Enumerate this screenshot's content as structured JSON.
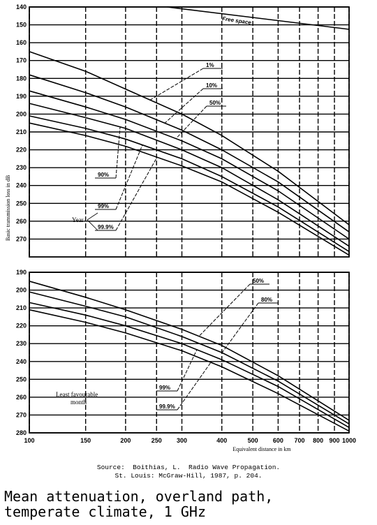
{
  "chart_data": [
    {
      "type": "line",
      "panel": "upper",
      "y_ticks": [
        140,
        150,
        160,
        170,
        180,
        190,
        200,
        210,
        220,
        230,
        240,
        250,
        260,
        270
      ],
      "ylim": [
        140,
        280
      ],
      "ylabel": "Basic transmission loss in dB",
      "xlim": [
        100,
        1000
      ],
      "x_scale": "log",
      "grid": true,
      "series": [
        {
          "name": "Free space",
          "x": [
            270,
            1000
          ],
          "y": [
            140,
            152.5
          ]
        },
        {
          "name": "1%",
          "x": [
            100,
            150,
            200,
            300,
            400,
            600,
            1000
          ],
          "y": [
            165,
            176,
            186,
            200,
            212,
            232,
            262
          ]
        },
        {
          "name": "10%",
          "x": [
            100,
            150,
            200,
            300,
            400,
            600,
            1000
          ],
          "y": [
            178,
            188,
            196,
            209,
            220,
            238,
            266
          ]
        },
        {
          "name": "50%",
          "x": [
            100,
            150,
            200,
            300,
            400,
            600,
            1000
          ],
          "y": [
            187,
            196,
            203,
            215,
            225,
            243,
            270
          ]
        },
        {
          "name": "90%",
          "x": [
            100,
            150,
            200,
            300,
            400,
            600,
            1000
          ],
          "y": [
            194,
            202,
            208,
            220,
            230,
            248,
            274
          ]
        },
        {
          "name": "99%",
          "x": [
            100,
            150,
            200,
            300,
            400,
            600,
            1000
          ],
          "y": [
            201,
            208,
            214,
            225,
            235,
            252,
            277
          ]
        },
        {
          "name": "99.9%",
          "x": [
            100,
            150,
            200,
            300,
            400,
            600,
            1000
          ],
          "y": [
            205,
            212,
            218,
            229,
            238,
            255,
            279
          ]
        }
      ],
      "annotations": [
        "Free space",
        "Year"
      ]
    },
    {
      "type": "line",
      "panel": "lower",
      "y_ticks": [
        190,
        200,
        210,
        220,
        230,
        240,
        250,
        260,
        270,
        280
      ],
      "ylim": [
        190,
        280
      ],
      "x_ticks": [
        100,
        150,
        200,
        250,
        300,
        400,
        500,
        600,
        700,
        800,
        900,
        1000
      ],
      "x_tick_labels": [
        "100",
        "150",
        "200",
        "250",
        "300",
        "400",
        "500",
        "600",
        "700",
        "800",
        "900",
        "1000"
      ],
      "xlim": [
        100,
        1000
      ],
      "x_scale": "log",
      "xlabel": "Equivalent distance in km",
      "grid": true,
      "series": [
        {
          "name": "50%",
          "x": [
            100,
            150,
            200,
            300,
            400,
            600,
            1000
          ],
          "y": [
            195,
            204,
            211,
            222,
            231,
            248,
            273
          ]
        },
        {
          "name": "80%",
          "x": [
            100,
            150,
            200,
            300,
            400,
            600,
            1000
          ],
          "y": [
            201,
            209,
            215,
            226,
            235,
            251,
            275
          ]
        },
        {
          "name": "99%",
          "x": [
            100,
            150,
            200,
            300,
            400,
            600,
            1000
          ],
          "y": [
            207,
            214,
            220,
            230,
            239,
            254,
            277
          ]
        },
        {
          "name": "99.9%",
          "x": [
            100,
            150,
            200,
            300,
            400,
            600,
            1000
          ],
          "y": [
            211,
            218,
            224,
            234,
            243,
            258,
            279
          ]
        }
      ],
      "annotations": [
        "Least favourable month"
      ]
    }
  ],
  "source": {
    "line1": "Source:  Boithias, L.  Radio Wave Propagation.",
    "line2": "St. Louis: McGraw-Hill, 1987, p. 204."
  },
  "caption": {
    "line1": "Mean attenuation, overland path,",
    "line2": "temperate climate, 1 GHz"
  }
}
